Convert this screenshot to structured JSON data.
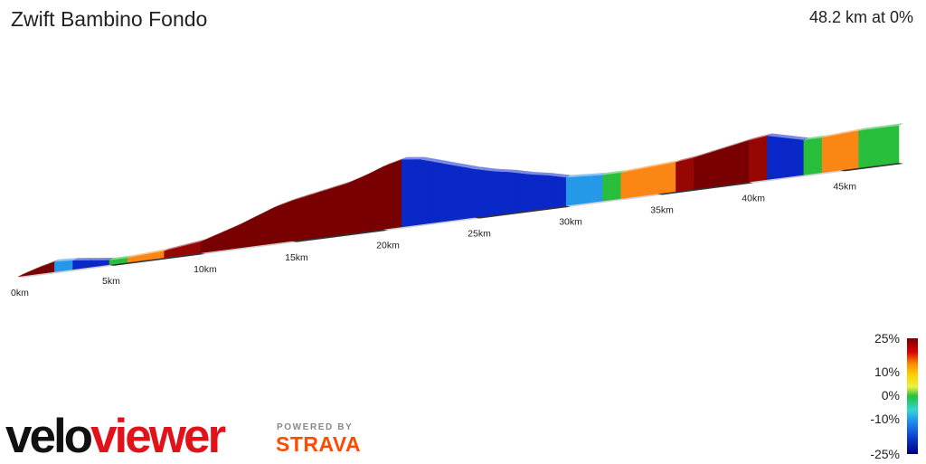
{
  "header": {
    "title": "Zwift Bambino Fondo",
    "summary": "48.2 km at 0%"
  },
  "chart_data": {
    "type": "area",
    "title": "Zwift Bambino Fondo",
    "distance_km": 48.2,
    "x_ticks": [
      "0km",
      "5km",
      "10km",
      "15km",
      "20km",
      "25km",
      "30km",
      "35km",
      "40km",
      "45km"
    ],
    "x_tick_values": [
      0,
      5,
      10,
      15,
      20,
      25,
      30,
      35,
      40,
      45
    ],
    "elevation_profile": {
      "x_km": [
        0,
        1,
        2,
        3,
        4,
        5,
        6,
        7,
        8,
        9,
        10,
        11,
        12,
        13,
        14,
        15,
        16,
        17,
        18,
        19,
        20,
        21,
        22,
        23,
        24,
        25,
        26,
        27,
        28,
        29,
        30,
        31,
        32,
        33,
        34,
        35,
        36,
        37,
        38,
        39,
        40,
        41,
        42,
        43,
        44,
        45,
        46,
        47,
        48.2
      ],
      "relative_elevation": [
        0,
        10,
        18,
        16,
        12,
        8,
        8,
        10,
        12,
        16,
        20,
        30,
        40,
        52,
        64,
        72,
        78,
        84,
        90,
        100,
        112,
        120,
        116,
        106,
        96,
        86,
        78,
        72,
        64,
        58,
        50,
        48,
        46,
        46,
        48,
        50,
        52,
        56,
        62,
        68,
        74,
        78,
        70,
        62,
        62,
        64,
        66,
        66,
        66
      ]
    },
    "gradient_legend": [
      "25%",
      "10%",
      "0%",
      "-10%",
      "-25%"
    ]
  },
  "branding": {
    "veloviewer": "veloviewer",
    "powered_by": "POWERED BY",
    "strava": "STRAVA"
  }
}
